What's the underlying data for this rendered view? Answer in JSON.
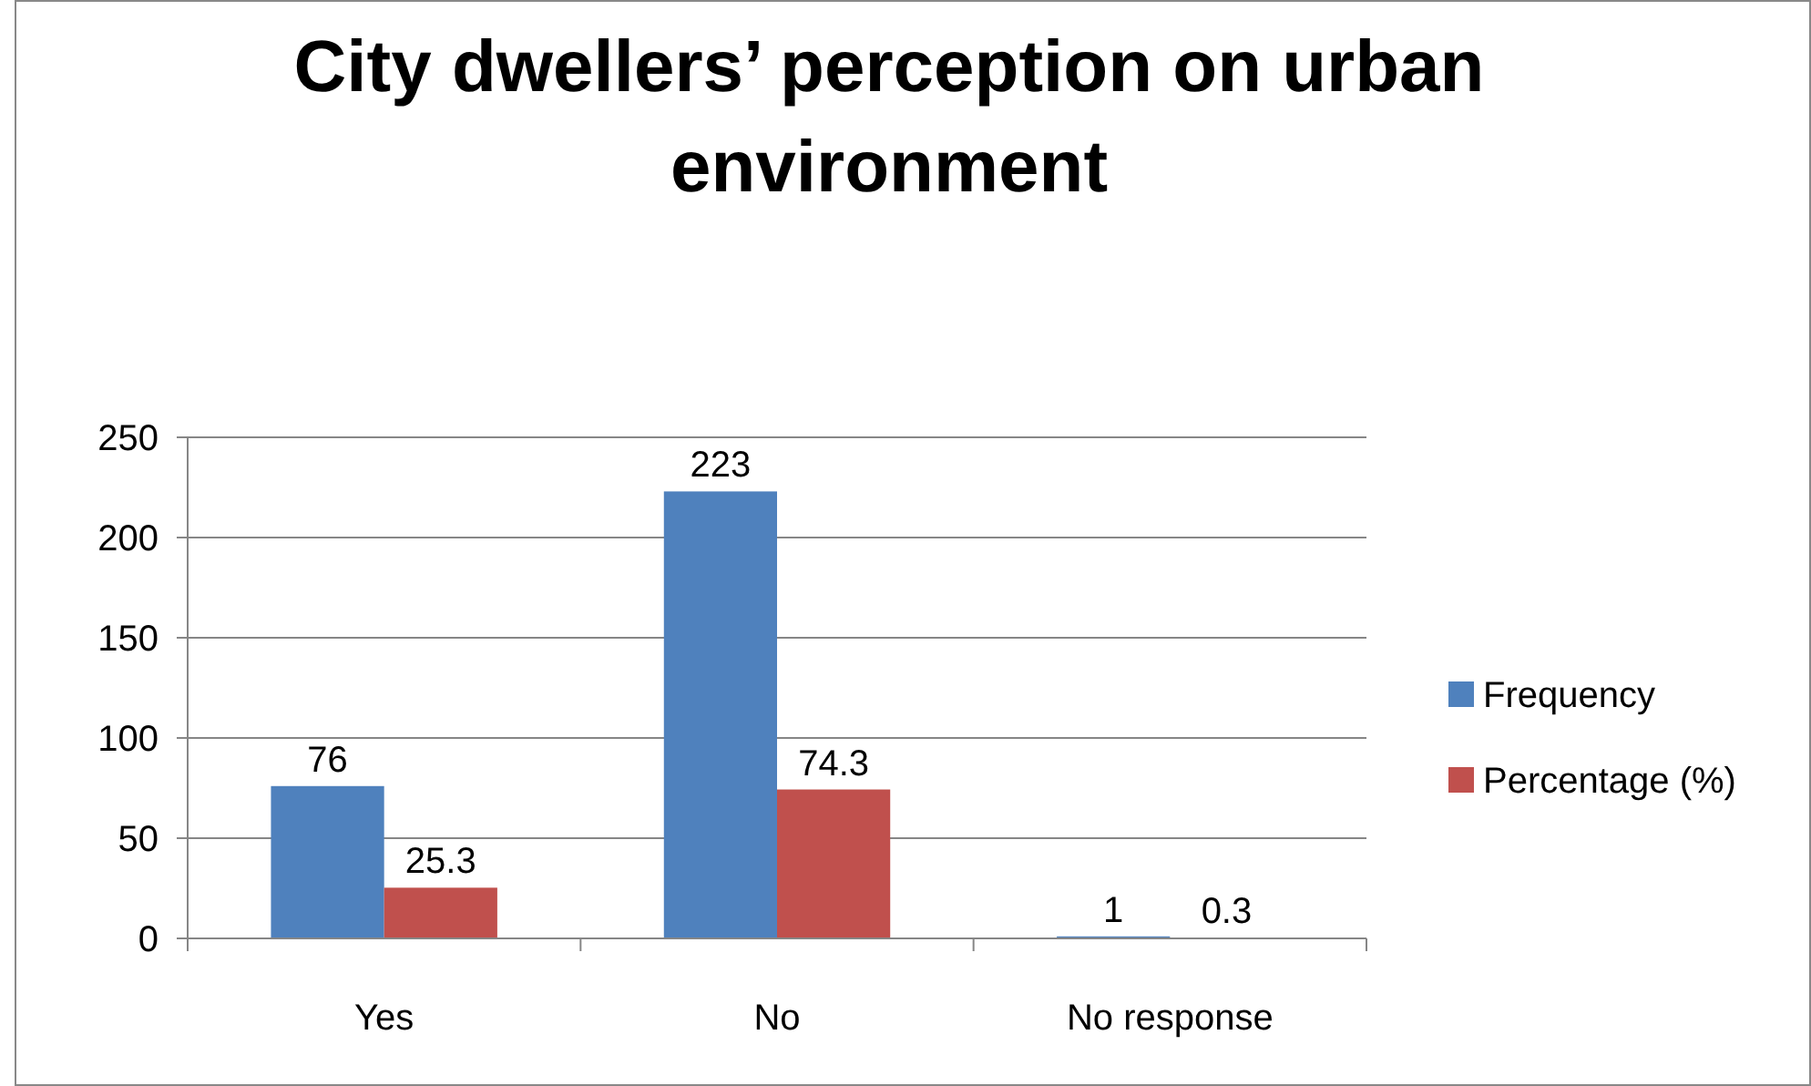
{
  "chart_data": {
    "type": "bar",
    "title": "City dwellers’ perception on urban environment",
    "categories": [
      "Yes",
      "No",
      "No response"
    ],
    "series": [
      {
        "name": "Frequency",
        "color": "#4f81bd",
        "values": [
          76,
          223,
          1
        ]
      },
      {
        "name": "Percentage (%)",
        "color": "#c0504d",
        "values": [
          25.3,
          74.3,
          0.3
        ]
      }
    ],
    "ylim": [
      0,
      250
    ],
    "yticks": [
      0,
      50,
      100,
      150,
      200,
      250
    ],
    "grid": "y",
    "legend": "right",
    "data_labels": true
  }
}
